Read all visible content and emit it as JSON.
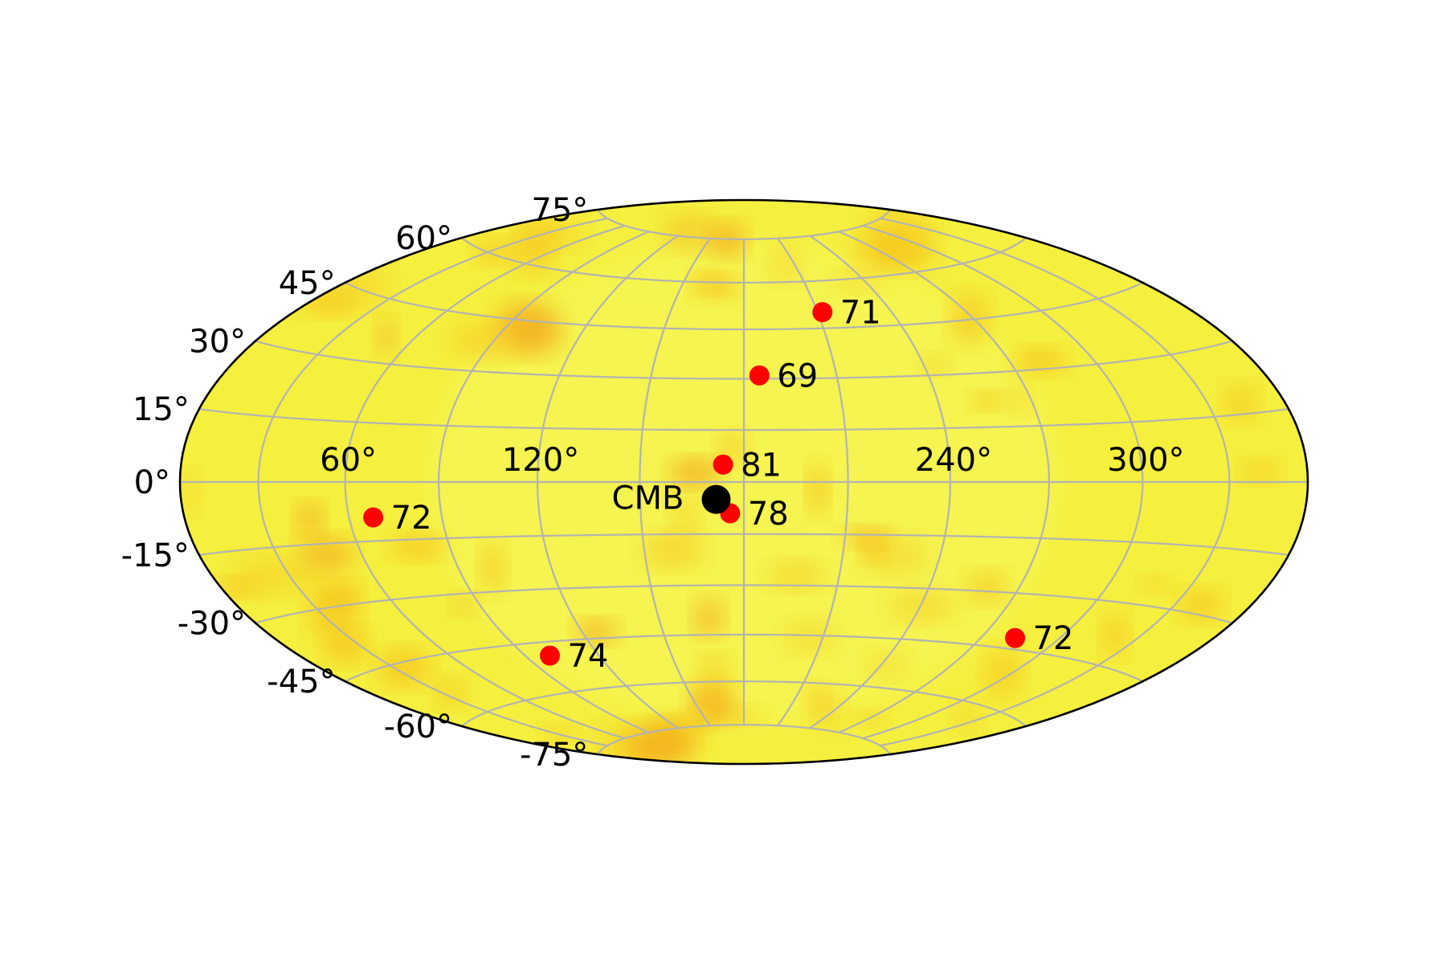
{
  "chart_data": {
    "type": "scatter",
    "projection": "hammer",
    "grid": true,
    "lat_ticks": [
      {
        "value": 75,
        "label": "75°"
      },
      {
        "value": 60,
        "label": "60°"
      },
      {
        "value": 45,
        "label": "45°"
      },
      {
        "value": 30,
        "label": "30°"
      },
      {
        "value": 15,
        "label": "15°"
      },
      {
        "value": 0,
        "label": "0°"
      },
      {
        "value": -15,
        "label": "-15°"
      },
      {
        "value": -30,
        "label": "-30°"
      },
      {
        "value": -45,
        "label": "-45°"
      },
      {
        "value": -60,
        "label": "-60°"
      },
      {
        "value": -75,
        "label": "-75°"
      }
    ],
    "lon_ticks": [
      {
        "value": 60,
        "label": "60°"
      },
      {
        "value": 120,
        "label": "120°"
      },
      {
        "value": 240,
        "label": "240°"
      },
      {
        "value": 300,
        "label": "300°"
      }
    ],
    "points": [
      {
        "label": "71",
        "lon": 212,
        "lat": 50,
        "color": "#ff0000"
      },
      {
        "label": "69",
        "lon": 185,
        "lat": 31,
        "color": "#ff0000"
      },
      {
        "label": "81",
        "lon": 174,
        "lat": 5,
        "color": "#ff0000"
      },
      {
        "label": "78",
        "lon": 176,
        "lat": -9,
        "color": "#ff0000"
      },
      {
        "label": "72",
        "lon": 68,
        "lat": -9,
        "color": "#ff0000"
      },
      {
        "label": "74",
        "lon": 100,
        "lat": -49,
        "color": "#ff0000"
      },
      {
        "label": "72",
        "lon": 283,
        "lat": -42,
        "color": "#ff0000"
      }
    ],
    "markers": [
      {
        "label": "CMB",
        "lon": 172,
        "lat": -5,
        "color": "#000000"
      }
    ],
    "colormap": [
      "#f5f95e",
      "#f2ee3c",
      "#f7c61e",
      "#f4a214"
    ]
  }
}
